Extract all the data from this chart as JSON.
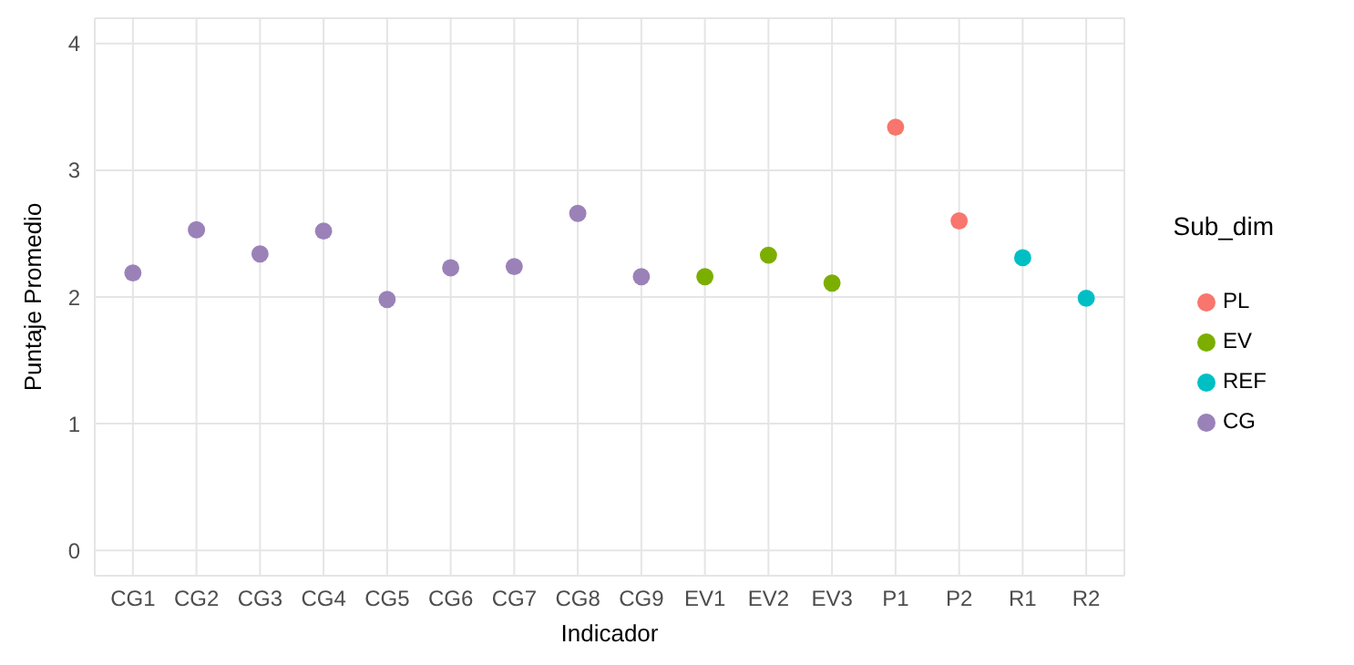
{
  "chart_data": {
    "type": "scatter",
    "xlabel": "Indicador",
    "ylabel": "Puntaje Promedio",
    "legend_title": "Sub_dim",
    "categories": [
      "CG1",
      "CG2",
      "CG3",
      "CG4",
      "CG5",
      "CG6",
      "CG7",
      "CG8",
      "CG9",
      "EV1",
      "EV2",
      "EV3",
      "P1",
      "P2",
      "R1",
      "R2"
    ],
    "series": [
      {
        "name": "PL",
        "color": "#f8766d",
        "values": [
          null,
          null,
          null,
          null,
          null,
          null,
          null,
          null,
          null,
          null,
          null,
          null,
          3.34,
          2.6,
          null,
          null
        ]
      },
      {
        "name": "EV",
        "color": "#7cae00",
        "values": [
          null,
          null,
          null,
          null,
          null,
          null,
          null,
          null,
          null,
          2.16,
          2.33,
          2.11,
          null,
          null,
          null,
          null
        ]
      },
      {
        "name": "REF",
        "color": "#00bfc4",
        "values": [
          null,
          null,
          null,
          null,
          null,
          null,
          null,
          null,
          null,
          null,
          null,
          null,
          null,
          null,
          2.31,
          1.99
        ]
      },
      {
        "name": "CG",
        "color": "#9a82b8",
        "values": [
          2.19,
          2.53,
          2.34,
          2.52,
          1.98,
          2.23,
          2.24,
          2.66,
          2.16,
          null,
          null,
          null,
          null,
          null,
          null,
          null
        ]
      }
    ],
    "ylim": [
      -0.2,
      4.2
    ],
    "yticks": [
      0,
      1,
      2,
      3,
      4
    ],
    "grid": true,
    "legend": "right",
    "marker": "circle"
  }
}
